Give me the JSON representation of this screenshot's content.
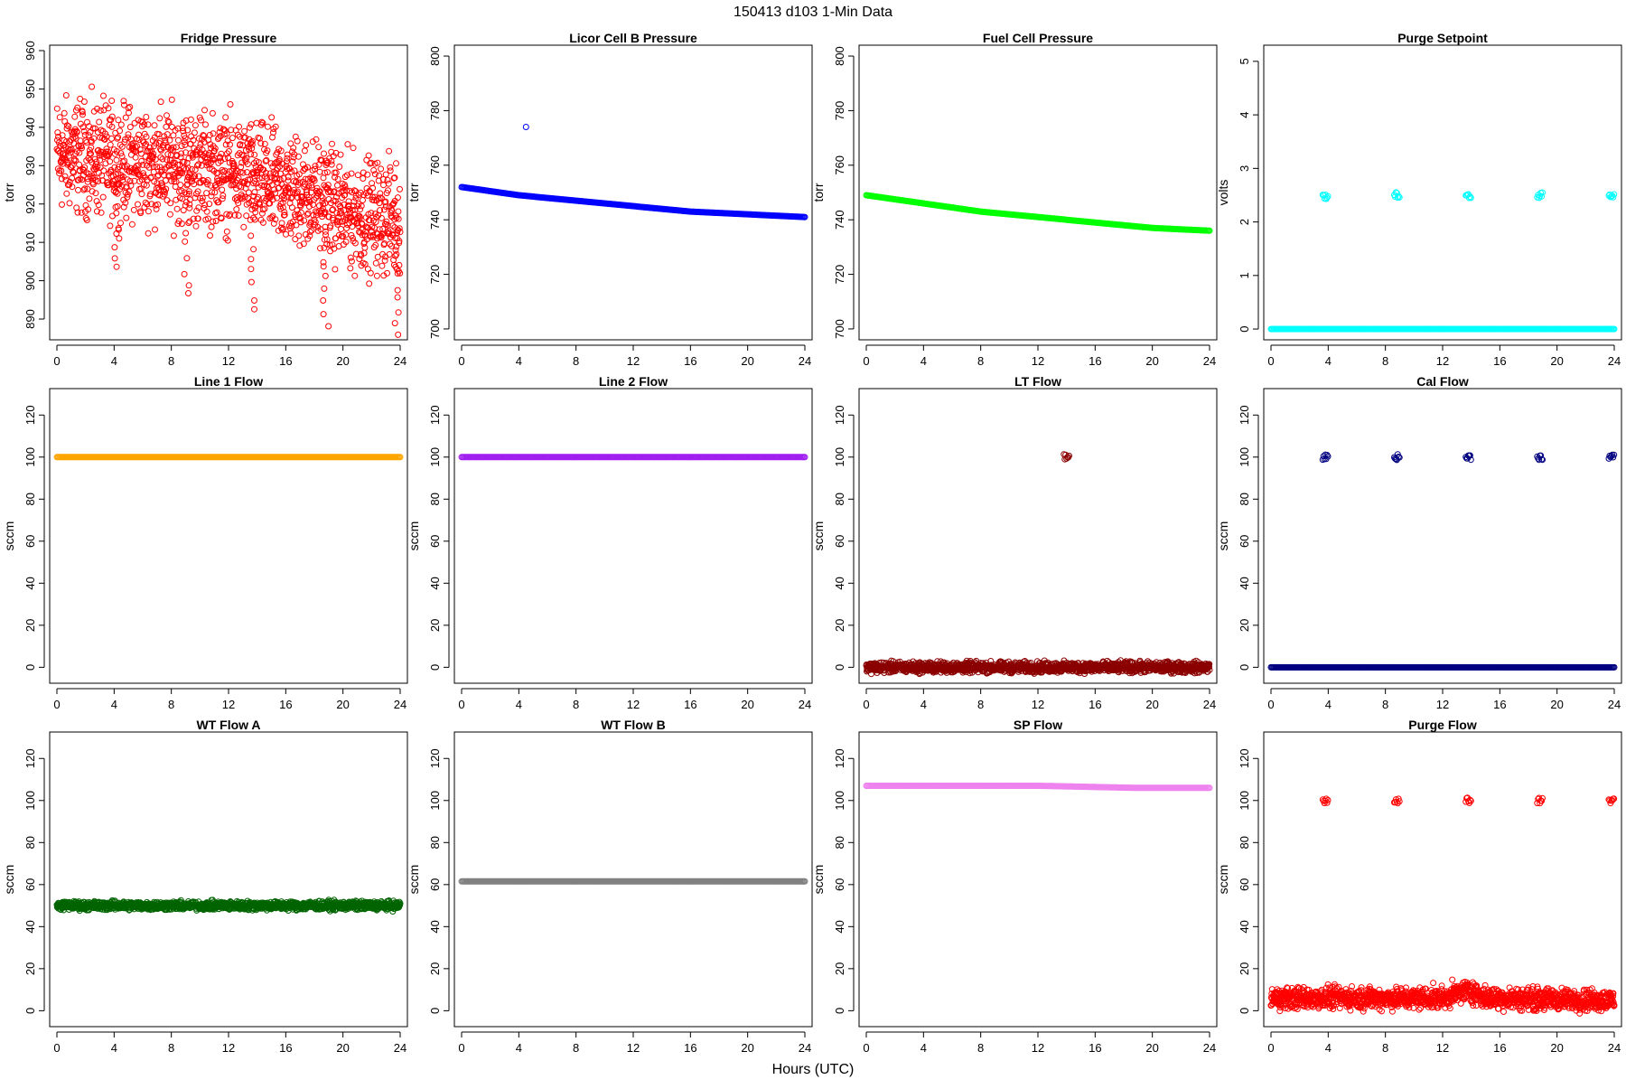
{
  "title": "150413   d103   1-Min Data",
  "xlabel": "Hours (UTC)",
  "chart_data": [
    {
      "type": "scatter",
      "title": "Fridge Pressure",
      "ylabel": "torr",
      "color": "#ff0000",
      "xlim": [
        0,
        24
      ],
      "ylim": [
        886,
        960
      ],
      "xticks": [
        0,
        4,
        8,
        12,
        16,
        20,
        24
      ],
      "yticks": [
        890,
        900,
        910,
        920,
        930,
        940,
        950,
        960
      ],
      "series": [
        {
          "trend": [
            [
              0,
              933
            ],
            [
              4,
              931
            ],
            [
              8,
              930
            ],
            [
              12,
              928
            ],
            [
              16,
              924
            ],
            [
              19,
              921
            ],
            [
              20,
              918
            ],
            [
              24,
              916
            ]
          ],
          "spread": 14,
          "dips": [
            [
              4.2,
              903
            ],
            [
              9.1,
              896
            ],
            [
              13.7,
              892
            ],
            [
              18.8,
              888
            ],
            [
              23.8,
              886
            ]
          ]
        }
      ]
    },
    {
      "type": "scatter",
      "title": "Licor Cell B Pressure",
      "ylabel": "torr",
      "color": "#0000ff",
      "xlim": [
        0,
        24
      ],
      "ylim": [
        698,
        802
      ],
      "xticks": [
        0,
        4,
        8,
        12,
        16,
        20,
        24
      ],
      "yticks": [
        700,
        720,
        740,
        760,
        780,
        800
      ],
      "series": [
        {
          "trend": [
            [
              0,
              752
            ],
            [
              4,
              749
            ],
            [
              8,
              747
            ],
            [
              12,
              745
            ],
            [
              16,
              743
            ],
            [
              20,
              742
            ],
            [
              24,
              741
            ]
          ]
        }
      ],
      "outliers": [
        [
          4.5,
          774
        ]
      ]
    },
    {
      "type": "scatter",
      "title": "Fuel Cell Pressure",
      "ylabel": "torr",
      "color": "#00ff00",
      "xlim": [
        0,
        24
      ],
      "ylim": [
        698,
        802
      ],
      "xticks": [
        0,
        4,
        8,
        12,
        16,
        20,
        24
      ],
      "yticks": [
        700,
        720,
        740,
        760,
        780,
        800
      ],
      "series": [
        {
          "trend": [
            [
              0,
              749
            ],
            [
              4,
              746
            ],
            [
              8,
              743
            ],
            [
              12,
              741
            ],
            [
              16,
              739
            ],
            [
              20,
              737
            ],
            [
              24,
              736
            ]
          ]
        }
      ]
    },
    {
      "type": "scatter",
      "title": "Purge Setpoint",
      "ylabel": "volts",
      "color": "#00ffff",
      "xlim": [
        0,
        24
      ],
      "ylim": [
        -0.1,
        5.2
      ],
      "xticks": [
        0,
        4,
        8,
        12,
        16,
        20,
        24
      ],
      "yticks": [
        0,
        1,
        2,
        3,
        4,
        5
      ],
      "series": [
        {
          "trend": [
            [
              0,
              0
            ],
            [
              24,
              0
            ]
          ]
        }
      ],
      "clusters": [
        [
          3.8,
          2.48
        ],
        [
          8.8,
          2.5
        ],
        [
          13.8,
          2.47
        ],
        [
          18.8,
          2.5
        ],
        [
          23.8,
          2.5
        ]
      ]
    },
    {
      "type": "scatter",
      "title": "Line 1 Flow",
      "ylabel": "sccm",
      "color": "#ffa500",
      "xlim": [
        0,
        24
      ],
      "ylim": [
        -5,
        130
      ],
      "xticks": [
        0,
        4,
        8,
        12,
        16,
        20,
        24
      ],
      "yticks": [
        0,
        20,
        40,
        60,
        80,
        100,
        120
      ],
      "series": [
        {
          "trend": [
            [
              0,
              100
            ],
            [
              24,
              100
            ]
          ]
        }
      ]
    },
    {
      "type": "scatter",
      "title": "Line 2 Flow",
      "ylabel": "sccm",
      "color": "#a020f0",
      "xlim": [
        0,
        24
      ],
      "ylim": [
        -5,
        130
      ],
      "xticks": [
        0,
        4,
        8,
        12,
        16,
        20,
        24
      ],
      "yticks": [
        0,
        20,
        40,
        60,
        80,
        100,
        120
      ],
      "series": [
        {
          "trend": [
            [
              0,
              100
            ],
            [
              24,
              100
            ]
          ]
        }
      ]
    },
    {
      "type": "scatter",
      "title": "LT Flow",
      "ylabel": "sccm",
      "color": "#8b0000",
      "xlim": [
        0,
        24
      ],
      "ylim": [
        -5,
        130
      ],
      "xticks": [
        0,
        4,
        8,
        12,
        16,
        20,
        24
      ],
      "yticks": [
        0,
        20,
        40,
        60,
        80,
        100,
        120
      ],
      "series": [
        {
          "trend": [
            [
              0,
              0
            ],
            [
              24,
              0
            ]
          ],
          "spread": 2.5
        }
      ],
      "clusters": [
        [
          14,
          100
        ]
      ]
    },
    {
      "type": "scatter",
      "title": "Cal Flow",
      "ylabel": "sccm",
      "color": "#000080",
      "xlim": [
        0,
        24
      ],
      "ylim": [
        -5,
        130
      ],
      "xticks": [
        0,
        4,
        8,
        12,
        16,
        20,
        24
      ],
      "yticks": [
        0,
        20,
        40,
        60,
        80,
        100,
        120
      ],
      "series": [
        {
          "trend": [
            [
              0,
              0
            ],
            [
              24,
              0
            ]
          ]
        }
      ],
      "clusters": [
        [
          3.8,
          100
        ],
        [
          8.8,
          100
        ],
        [
          13.8,
          100
        ],
        [
          18.8,
          100
        ],
        [
          23.8,
          100
        ]
      ]
    },
    {
      "type": "scatter",
      "title": "WT Flow A",
      "ylabel": "sccm",
      "color": "#006400",
      "xlim": [
        0,
        24
      ],
      "ylim": [
        -5,
        130
      ],
      "xticks": [
        0,
        4,
        8,
        12,
        16,
        20,
        24
      ],
      "yticks": [
        0,
        20,
        40,
        60,
        80,
        100,
        120
      ],
      "series": [
        {
          "trend": [
            [
              0,
              50
            ],
            [
              24,
              50
            ]
          ],
          "spread": 2
        }
      ]
    },
    {
      "type": "scatter",
      "title": "WT Flow B",
      "ylabel": "sccm",
      "color": "#808080",
      "xlim": [
        0,
        24
      ],
      "ylim": [
        -5,
        130
      ],
      "xticks": [
        0,
        4,
        8,
        12,
        16,
        20,
        24
      ],
      "yticks": [
        0,
        20,
        40,
        60,
        80,
        100,
        120
      ],
      "series": [
        {
          "trend": [
            [
              0,
              61.5
            ],
            [
              24,
              61.5
            ]
          ]
        }
      ]
    },
    {
      "type": "scatter",
      "title": "SP Flow",
      "ylabel": "sccm",
      "color": "#ee82ee",
      "xlim": [
        0,
        24
      ],
      "ylim": [
        -5,
        130
      ],
      "xticks": [
        0,
        4,
        8,
        12,
        16,
        20,
        24
      ],
      "yticks": [
        0,
        20,
        40,
        60,
        80,
        100,
        120
      ],
      "series": [
        {
          "trend": [
            [
              0,
              107
            ],
            [
              12,
              107
            ],
            [
              19,
              106
            ],
            [
              24,
              106
            ]
          ]
        }
      ]
    },
    {
      "type": "scatter",
      "title": "Purge Flow",
      "ylabel": "sccm",
      "color": "#ff0000",
      "xlim": [
        0,
        24
      ],
      "ylim": [
        -5,
        130
      ],
      "xticks": [
        0,
        4,
        8,
        12,
        16,
        20,
        24
      ],
      "yticks": [
        0,
        20,
        40,
        60,
        80,
        100,
        120
      ],
      "series": [
        {
          "trend": [
            [
              0,
              6
            ],
            [
              12,
              6
            ],
            [
              13.8,
              10
            ],
            [
              15,
              6
            ],
            [
              24,
              5
            ]
          ],
          "spread": 5
        }
      ],
      "clusters": [
        [
          3.8,
          100
        ],
        [
          8.8,
          100
        ],
        [
          13.8,
          100
        ],
        [
          18.8,
          100
        ],
        [
          23.8,
          100
        ]
      ]
    }
  ]
}
